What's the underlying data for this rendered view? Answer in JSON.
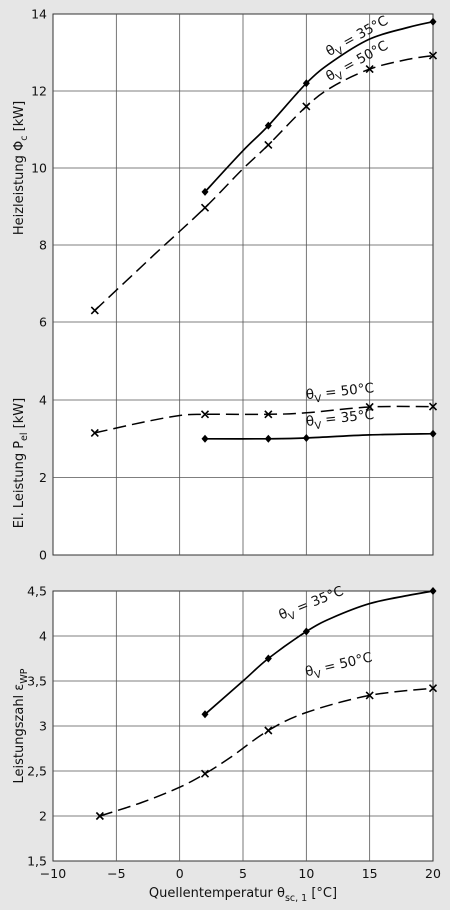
{
  "colors": {
    "background": "#e6e6e6",
    "plot": "#ffffff",
    "line": "#000000",
    "grid": "#555555"
  },
  "chart_data": {
    "type": "line",
    "shared_x": {
      "label_main": "Quellentemperatur θ",
      "label_sub": "sc, 1",
      "label_unit": "[°C]",
      "range": [
        -10,
        20
      ],
      "ticks": [
        "−10",
        "−5",
        "0",
        "5",
        "10",
        "15",
        "20"
      ],
      "tick_values": [
        -10,
        -5,
        0,
        5,
        10,
        15,
        20
      ]
    },
    "panels": [
      {
        "id": "heizleistung",
        "ylabel_main": "Heizleistung Φ",
        "ylabel_sub": "c",
        "ylabel_unit": "[kW]",
        "ylim": [
          6,
          14
        ],
        "yticks": [
          "6",
          "8",
          "10",
          "12",
          "14"
        ],
        "ytick_values": [
          6,
          8,
          10,
          12,
          14
        ],
        "grid": true,
        "series": [
          {
            "label": "θ",
            "label_sub": "V",
            "label_rest": " = 35°C",
            "style": "solid",
            "marker": "diamond",
            "points": [
              [
                2,
                9.38
              ],
              [
                7,
                11.1
              ],
              [
                10,
                12.2
              ],
              [
                20,
                13.8
              ]
            ],
            "curve_x": [
              2,
              5,
              7,
              10,
              12,
              15,
              18,
              20
            ],
            "curve": [
              9.38,
              10.45,
              11.1,
              12.2,
              12.75,
              13.35,
              13.65,
              13.8
            ],
            "label_pos": [
              11.8,
              12.9
            ],
            "label_rot": -29
          },
          {
            "label": "θ",
            "label_sub": "V",
            "label_rest": " = 50°C",
            "style": "dashed",
            "marker": "x",
            "points": [
              [
                -6.7,
                6.3
              ],
              [
                2,
                8.97
              ],
              [
                7,
                10.6
              ],
              [
                10,
                11.6
              ],
              [
                15,
                12.57
              ],
              [
                20,
                12.92
              ]
            ],
            "curve_x": [
              -6.7,
              -2,
              2,
              5,
              7,
              10,
              12,
              15,
              18,
              20
            ],
            "curve": [
              6.3,
              7.75,
              8.97,
              9.98,
              10.6,
              11.6,
              12.1,
              12.57,
              12.82,
              12.92
            ],
            "label_pos": [
              11.8,
              12.25
            ],
            "label_rot": -29
          }
        ]
      },
      {
        "id": "el-leistung",
        "ylabel_main": "El. Leistung P",
        "ylabel_sub": "el",
        "ylabel_unit": "[kW]",
        "ylim": [
          0,
          4
        ],
        "yticks": [
          "0",
          "2",
          "4"
        ],
        "ytick_values": [
          0,
          2,
          4
        ],
        "grid": true,
        "series": [
          {
            "label": "θ",
            "label_sub": "V",
            "label_rest": " = 50°C",
            "style": "dashed",
            "marker": "x",
            "points": [
              [
                -6.7,
                3.15
              ],
              [
                2,
                3.63
              ],
              [
                7,
                3.63
              ],
              [
                15,
                3.82
              ],
              [
                20,
                3.83
              ]
            ],
            "curve_x": [
              -6.7,
              -3,
              0,
              2,
              7,
              10,
              15,
              20
            ],
            "curve": [
              3.15,
              3.42,
              3.6,
              3.63,
              3.63,
              3.67,
              3.82,
              3.83
            ],
            "label_pos": [
              10,
              4.02
            ],
            "label_rot": -6
          },
          {
            "label": "θ",
            "label_sub": "V",
            "label_rest": " = 35°C",
            "style": "solid",
            "marker": "diamond",
            "points": [
              [
                2,
                3.0
              ],
              [
                7,
                3.0
              ],
              [
                10,
                3.02
              ],
              [
                20,
                3.13
              ]
            ],
            "curve_x": [
              2,
              7,
              10,
              15,
              20
            ],
            "curve": [
              3.0,
              3.0,
              3.02,
              3.1,
              3.13
            ],
            "label_pos": [
              10,
              3.33
            ],
            "label_rot": -6
          }
        ]
      },
      {
        "id": "leistungszahl",
        "ylabel_main": "Leistungszahl ε",
        "ylabel_sub": "WP",
        "ylabel_unit": "",
        "ylim": [
          1.5,
          4.5
        ],
        "yticks": [
          "1,5",
          "2",
          "2,5",
          "3",
          "3,5",
          "4",
          "4,5"
        ],
        "ytick_values": [
          1.5,
          2,
          2.5,
          3,
          3.5,
          4,
          4.5
        ],
        "grid": true,
        "series": [
          {
            "label": "θ",
            "label_sub": "V",
            "label_rest": " = 35°C",
            "style": "solid",
            "marker": "diamond",
            "points": [
              [
                2,
                3.13
              ],
              [
                7,
                3.75
              ],
              [
                10,
                4.05
              ],
              [
                20,
                4.5
              ]
            ],
            "curve_x": [
              2,
              5,
              7,
              10,
              12,
              15,
              18,
              20
            ],
            "curve": [
              3.13,
              3.5,
              3.75,
              4.05,
              4.2,
              4.36,
              4.45,
              4.5
            ],
            "label_pos": [
              8,
              4.18
            ],
            "label_rot": -22
          },
          {
            "label": "θ",
            "label_sub": "V",
            "label_rest": " = 50°C",
            "style": "dashed",
            "marker": "x",
            "points": [
              [
                -6.3,
                2.0
              ],
              [
                2,
                2.47
              ],
              [
                7,
                2.95
              ],
              [
                15,
                3.34
              ],
              [
                20,
                3.42
              ]
            ],
            "curve_x": [
              -6.3,
              -3,
              0,
              2,
              4,
              7,
              10,
              15,
              20
            ],
            "curve": [
              2.0,
              2.15,
              2.32,
              2.47,
              2.65,
              2.95,
              3.15,
              3.34,
              3.42
            ],
            "label_pos": [
              10,
              3.55
            ],
            "label_rot": -13
          }
        ]
      }
    ]
  }
}
